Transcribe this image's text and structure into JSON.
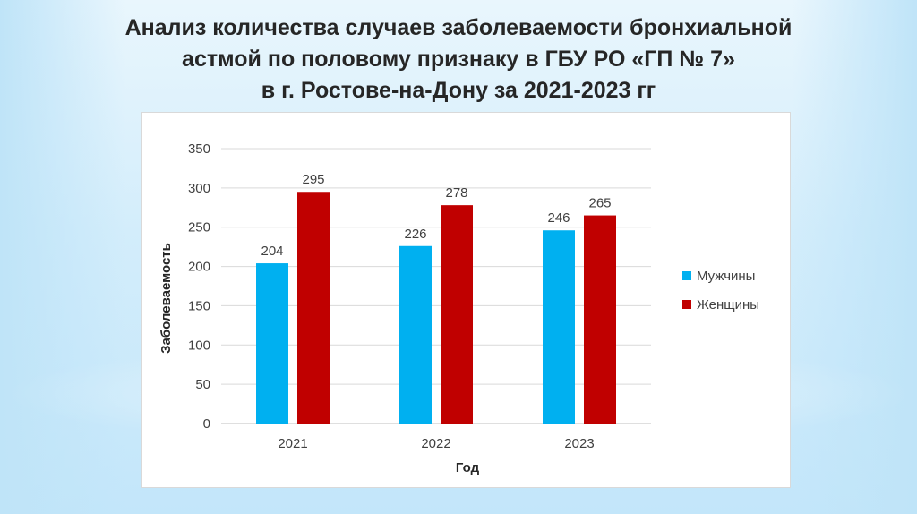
{
  "title_lines": [
    "Анализ количества случаев заболеваемости бронхиальной",
    "астмой по половому признаку в ГБУ РО «ГП № 7»",
    "в г. Ростове-на-Дону за 2021-2023 гг"
  ],
  "chart_data": {
    "type": "bar",
    "categories": [
      "2021",
      "2022",
      "2023"
    ],
    "series": [
      {
        "name": "Мужчины",
        "values": [
          204,
          226,
          246
        ],
        "color": "#00b0f0"
      },
      {
        "name": "Женщины",
        "values": [
          295,
          278,
          265
        ],
        "color": "#c00000"
      }
    ],
    "xlabel": "Год",
    "ylabel": "Заболеваемость",
    "ylim": [
      0,
      350
    ],
    "yticks": [
      0,
      50,
      100,
      150,
      200,
      250,
      300,
      350
    ],
    "grid": true,
    "legend_position": "right",
    "data_labels": true
  }
}
